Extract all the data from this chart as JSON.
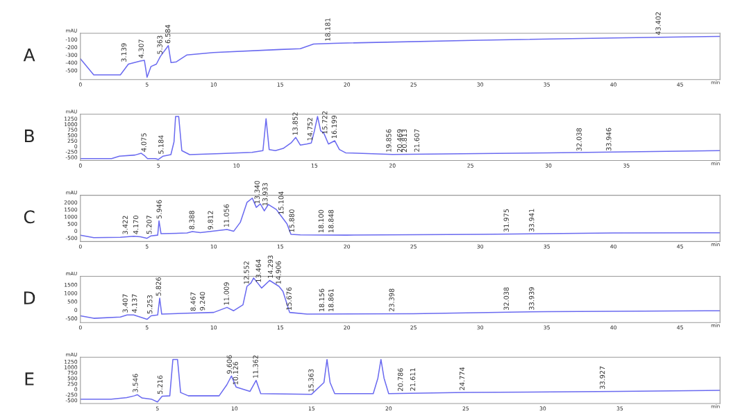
{
  "chart_data": [
    {
      "type": "line",
      "title": "A",
      "ylabel": "mAU",
      "xlabel": "min",
      "color": "#6a6af0",
      "xlim": [
        0,
        48
      ],
      "ylim": [
        -620,
        -20
      ],
      "xticks": [
        0,
        5,
        10,
        15,
        20,
        25,
        30,
        35,
        40,
        45
      ],
      "yticks": [
        -500,
        -400,
        -300,
        -200,
        -100
      ],
      "grid": false,
      "x": [
        0,
        1,
        3,
        3.6,
        4.5,
        4.8,
        5.0,
        5.3,
        5.7,
        6.0,
        6.6,
        6.8,
        7.2,
        8,
        10,
        15,
        16.5,
        17.5,
        19,
        30,
        40,
        48
      ],
      "values": [
        -350,
        -560,
        -560,
        -420,
        -380,
        -370,
        -590,
        -450,
        -420,
        -320,
        -180,
        -400,
        -390,
        -300,
        -270,
        -230,
        -220,
        -160,
        -150,
        -110,
        -80,
        -60
      ],
      "annotations": [
        {
          "text": "3.139",
          "x": 3.3,
          "y": -420
        },
        {
          "text": "4.307",
          "x": 4.6,
          "y": -370
        },
        {
          "text": "5.363",
          "x": 6.0,
          "y": -320
        },
        {
          "text": "6.584",
          "x": 6.6,
          "y": -180
        },
        {
          "text": "18.181",
          "x": 18.6,
          "y": -150
        },
        {
          "text": "43.402",
          "x": 43.4,
          "y": -70
        }
      ]
    },
    {
      "type": "line",
      "title": "B",
      "ylabel": "mAU",
      "xlabel": "min",
      "color": "#6a6af0",
      "xlim": [
        0,
        41
      ],
      "ylim": [
        -650,
        1450
      ],
      "xticks": [
        0,
        5,
        10,
        15,
        20,
        25,
        30,
        35
      ],
      "yticks": [
        -500,
        -250,
        0,
        250,
        500,
        750,
        1000,
        1250
      ],
      "grid": false,
      "x": [
        0,
        2,
        2.5,
        3.5,
        3.9,
        4.1,
        4.3,
        4.8,
        5.0,
        5.3,
        5.8,
        6.0,
        6.1,
        6.3,
        6.5,
        7,
        9,
        11,
        11.7,
        11.9,
        12.1,
        12.5,
        13,
        13.5,
        13.8,
        14.1,
        14.5,
        14.8,
        15.0,
        15.2,
        15.4,
        15.6,
        15.9,
        16.3,
        16.6,
        17,
        20,
        30,
        41
      ],
      "values": [
        -560,
        -560,
        -450,
        -400,
        -320,
        -420,
        -560,
        -560,
        -600,
        -450,
        -380,
        200,
        1350,
        1350,
        -200,
        -380,
        -330,
        -280,
        -200,
        1250,
        -150,
        -200,
        -100,
        150,
        400,
        50,
        100,
        150,
        700,
        1350,
        700,
        600,
        100,
        250,
        -150,
        -300,
        -370,
        -300,
        -200
      ],
      "annotations": [
        {
          "text": "4.075",
          "x": 4.1,
          "y": -350
        },
        {
          "text": "5.184",
          "x": 5.2,
          "y": -450
        },
        {
          "text": "13.852",
          "x": 13.8,
          "y": 400
        },
        {
          "text": "14.752",
          "x": 14.75,
          "y": 150
        },
        {
          "text": "15.722",
          "x": 15.7,
          "y": 450
        },
        {
          "text": "16.199",
          "x": 16.3,
          "y": 250
        },
        {
          "text": "19.856",
          "x": 19.8,
          "y": -370
        },
        {
          "text": "20.469",
          "x": 20.5,
          "y": -370
        },
        {
          "text": "20.813",
          "x": 20.8,
          "y": -370
        },
        {
          "text": "21.607",
          "x": 21.6,
          "y": -360
        },
        {
          "text": "32.038",
          "x": 32.0,
          "y": -320
        },
        {
          "text": "33.946",
          "x": 33.9,
          "y": -310
        }
      ]
    },
    {
      "type": "line",
      "title": "C",
      "ylabel": "mAU",
      "xlabel": "min",
      "color": "#6a6af0",
      "xlim": [
        0,
        48
      ],
      "ylim": [
        -750,
        2500
      ],
      "xticks": [
        0,
        5,
        10,
        15,
        20,
        25,
        30,
        35,
        40,
        45
      ],
      "yticks": [
        -500,
        0,
        500,
        1000,
        1500,
        2000
      ],
      "grid": false,
      "x": [
        0,
        1,
        3,
        4,
        4.5,
        5,
        5.3,
        5.8,
        5.9,
        6.05,
        8,
        8.4,
        9,
        11,
        11.5,
        12,
        12.5,
        12.9,
        13.2,
        13.5,
        13.8,
        14.1,
        14.7,
        15.1,
        15.5,
        15.8,
        16.5,
        20,
        30,
        40,
        48
      ],
      "values": [
        -300,
        -480,
        -450,
        -380,
        -420,
        -520,
        -350,
        -300,
        700,
        -200,
        -150,
        -50,
        -120,
        100,
        -30,
        600,
        2000,
        2300,
        1650,
        1900,
        1400,
        1850,
        1500,
        1000,
        500,
        -250,
        -280,
        -300,
        -250,
        -150,
        -130
      ],
      "annotations": [
        {
          "text": "3.422",
          "x": 3.4,
          "y": -400
        },
        {
          "text": "4.170",
          "x": 4.2,
          "y": -390
        },
        {
          "text": "5.207",
          "x": 5.2,
          "y": -380
        },
        {
          "text": "5.946",
          "x": 5.95,
          "y": 700
        },
        {
          "text": "8.388",
          "x": 8.4,
          "y": -50
        },
        {
          "text": "9.812",
          "x": 9.8,
          "y": -60
        },
        {
          "text": "11.056",
          "x": 11.0,
          "y": 100
        },
        {
          "text": "13.340",
          "x": 13.3,
          "y": 1750
        },
        {
          "text": "13.933",
          "x": 13.9,
          "y": 1600
        },
        {
          "text": "15.104",
          "x": 15.1,
          "y": 1000
        },
        {
          "text": "15.880",
          "x": 15.9,
          "y": -260
        },
        {
          "text": "18.100",
          "x": 18.1,
          "y": -290
        },
        {
          "text": "18.848",
          "x": 18.85,
          "y": -290
        },
        {
          "text": "31.975",
          "x": 32.0,
          "y": -230
        },
        {
          "text": "33.941",
          "x": 33.9,
          "y": -220
        }
      ]
    },
    {
      "type": "line",
      "title": "D",
      "ylabel": "mAU",
      "xlabel": "min",
      "color": "#6a6af0",
      "xlim": [
        0,
        48
      ],
      "ylim": [
        -750,
        2000
      ],
      "xticks": [
        0,
        5,
        10,
        15,
        20,
        25,
        30,
        35,
        40,
        45
      ],
      "yticks": [
        -500,
        0,
        500,
        1000,
        1500
      ],
      "grid": false,
      "x": [
        0,
        1,
        3,
        3.5,
        4.0,
        4.4,
        5,
        5.3,
        5.8,
        5.95,
        6.1,
        8,
        10,
        11,
        11.5,
        12.2,
        12.5,
        12.8,
        13.0,
        13.3,
        13.6,
        14.2,
        14.9,
        15.2,
        15.7,
        17,
        25,
        35,
        48
      ],
      "values": [
        -350,
        -500,
        -420,
        -300,
        -300,
        -400,
        -560,
        -350,
        -300,
        700,
        -250,
        -200,
        -150,
        150,
        -50,
        300,
        1400,
        1600,
        1900,
        1600,
        1300,
        1750,
        1400,
        1100,
        -150,
        -250,
        -230,
        -100,
        -50
      ],
      "annotations": [
        {
          "text": "3.407",
          "x": 3.4,
          "y": -300
        },
        {
          "text": "4.137",
          "x": 4.1,
          "y": -300
        },
        {
          "text": "5.253",
          "x": 5.25,
          "y": -360
        },
        {
          "text": "5.826",
          "x": 5.9,
          "y": 700
        },
        {
          "text": "8.467",
          "x": 8.5,
          "y": -190
        },
        {
          "text": "9.240",
          "x": 9.2,
          "y": -170
        },
        {
          "text": "11.009",
          "x": 11.0,
          "y": 150
        },
        {
          "text": "12.552",
          "x": 12.5,
          "y": 1400
        },
        {
          "text": "13.464",
          "x": 13.4,
          "y": 1500
        },
        {
          "text": "14.293",
          "x": 14.3,
          "y": 1750
        },
        {
          "text": "14.906",
          "x": 14.9,
          "y": 1400
        },
        {
          "text": "15.676",
          "x": 15.7,
          "y": -150
        },
        {
          "text": "18.156",
          "x": 18.15,
          "y": -240
        },
        {
          "text": "18.861",
          "x": 18.85,
          "y": -240
        },
        {
          "text": "23.398",
          "x": 23.4,
          "y": -230
        },
        {
          "text": "32.038",
          "x": 32.0,
          "y": -150
        },
        {
          "text": "33.939",
          "x": 33.9,
          "y": -140
        }
      ]
    },
    {
      "type": "line",
      "title": "E",
      "ylabel": "mAU",
      "xlabel": "min",
      "color": "#6a6af0",
      "xlim": [
        0,
        41.5
      ],
      "ylim": [
        -650,
        1450
      ],
      "xticks": [
        {
          "value": 0,
          "label": null
        },
        5,
        10,
        15,
        20,
        25,
        30,
        35
      ],
      "yticks": [
        -500,
        -250,
        0,
        250,
        500,
        750,
        1000,
        1250
      ],
      "grid": false,
      "x": [
        0,
        2,
        3,
        3.5,
        3.7,
        4.0,
        4.6,
        5,
        5.3,
        5.8,
        6.0,
        6.3,
        6.5,
        7,
        9,
        9.5,
        9.8,
        10.1,
        11,
        11.4,
        11.7,
        15,
        15.8,
        16.0,
        16.2,
        16.5,
        19,
        19.3,
        19.5,
        19.7,
        20,
        25,
        35,
        41.5
      ],
      "values": [
        -450,
        -450,
        -380,
        -300,
        -250,
        -400,
        -450,
        -580,
        -320,
        -300,
        1350,
        1350,
        -150,
        -300,
        -300,
        200,
        600,
        100,
        -100,
        400,
        -200,
        -230,
        300,
        1350,
        300,
        -200,
        -200,
        500,
        1350,
        500,
        -200,
        -150,
        -100,
        -50
      ],
      "annotations": [
        {
          "text": "3.546",
          "x": 3.6,
          "y": -250
        },
        {
          "text": "5.216",
          "x": 5.2,
          "y": -320
        },
        {
          "text": "9.606",
          "x": 9.7,
          "y": 600
        },
        {
          "text": "10.126",
          "x": 10.1,
          "y": 100
        },
        {
          "text": "11.362",
          "x": 11.4,
          "y": 400
        },
        {
          "text": "15.363",
          "x": 15.0,
          "y": -230
        },
        {
          "text": "20.786",
          "x": 20.8,
          "y": -190
        },
        {
          "text": "21.611",
          "x": 21.6,
          "y": -180
        },
        {
          "text": "24.774",
          "x": 24.8,
          "y": -150
        },
        {
          "text": "33.927",
          "x": 33.9,
          "y": -100
        }
      ]
    }
  ]
}
